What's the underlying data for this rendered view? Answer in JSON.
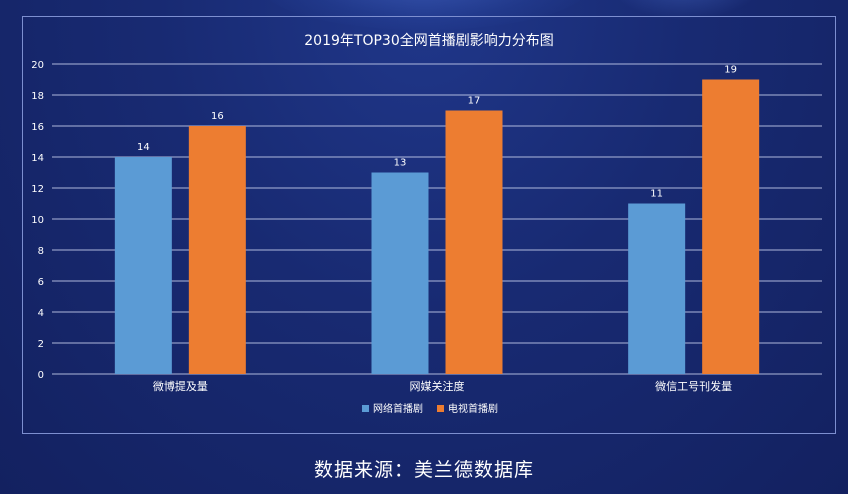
{
  "chart_data": {
    "type": "bar",
    "title": "2019年TOP30全网首播剧影响力分布图",
    "categories": [
      "微博提及量",
      "网媒关注度",
      "微信工号刊发量"
    ],
    "series": [
      {
        "name": "网络首播剧",
        "values": [
          14,
          13,
          11
        ],
        "color": "#5b9bd5"
      },
      {
        "name": "电视首播剧",
        "values": [
          16,
          17,
          19
        ],
        "color": "#ed7d31"
      }
    ],
    "ylim": [
      0,
      20
    ],
    "yticks": [
      0,
      2,
      4,
      6,
      8,
      10,
      12,
      14,
      16,
      18,
      20
    ],
    "grid": true,
    "legend_position": "bottom",
    "xlabel": "",
    "ylabel": ""
  },
  "footer": {
    "source": "数据来源：美兰德数据库"
  }
}
